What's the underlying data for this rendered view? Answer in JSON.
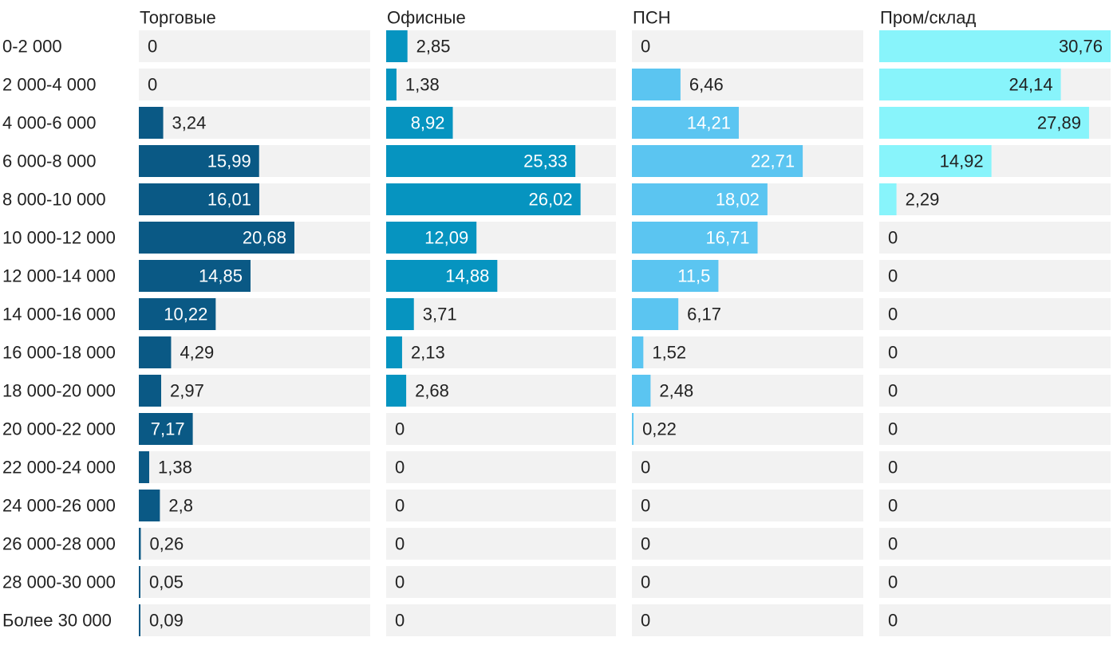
{
  "chart_data": {
    "type": "bar",
    "orientation": "horizontal",
    "layout": "small-multiples",
    "title": "",
    "categories": [
      "0-2 000",
      "2 000-4 000",
      "4 000-6 000",
      "6 000-8 000",
      "8 000-10 000",
      "10 000-12 000",
      "12 000-14 000",
      "14 000-16 000",
      "16 000-18 000",
      "18 000-20 000",
      "20 000-22 000",
      "22 000-24 000",
      "24 000-26 000",
      "26 000-28 000",
      "28 000-30 000",
      "Более 30 000"
    ],
    "series": [
      {
        "name": "Торговые",
        "color": "#0a5985",
        "values": [
          0,
          0,
          3.24,
          15.99,
          16.01,
          20.68,
          14.85,
          10.22,
          4.29,
          2.97,
          7.17,
          1.38,
          2.8,
          0.26,
          0.05,
          0.09
        ],
        "labels": [
          "0",
          "0",
          "3,24",
          "15,99",
          "16,01",
          "20,68",
          "14,85",
          "10,22",
          "4,29",
          "2,97",
          "7,17",
          "1,38",
          "2,8",
          "0,26",
          "0,05",
          "0,09"
        ]
      },
      {
        "name": "Офисные",
        "color": "#0694c0",
        "values": [
          2.85,
          1.38,
          8.92,
          25.33,
          26.02,
          12.09,
          14.88,
          3.71,
          2.13,
          2.68,
          0,
          0,
          0,
          0,
          0,
          0
        ],
        "labels": [
          "2,85",
          "1,38",
          "8,92",
          "25,33",
          "26,02",
          "12,09",
          "14,88",
          "3,71",
          "2,13",
          "2,68",
          "0",
          "0",
          "0",
          "0",
          "0",
          "0"
        ]
      },
      {
        "name": "ПСН",
        "color": "#5bc5f1",
        "values": [
          0,
          6.46,
          14.21,
          22.71,
          18.02,
          16.71,
          11.5,
          6.17,
          1.52,
          2.48,
          0.22,
          0,
          0,
          0,
          0,
          0
        ],
        "labels": [
          "0",
          "6,46",
          "14,21",
          "22,71",
          "18,02",
          "16,71",
          "11,5",
          "6,17",
          "1,52",
          "2,48",
          "0,22",
          "0",
          "0",
          "0",
          "0",
          "0"
        ]
      },
      {
        "name": "Пром/склад",
        "color": "#88f4fb",
        "values": [
          30.76,
          24.14,
          27.89,
          14.92,
          2.29,
          0,
          0,
          0,
          0,
          0,
          0,
          0,
          0,
          0,
          0,
          0
        ],
        "labels": [
          "30,76",
          "24,14",
          "27,89",
          "14,92",
          "2,29",
          "0",
          "0",
          "0",
          "0",
          "0",
          "0",
          "0",
          "0",
          "0",
          "0",
          "0"
        ]
      }
    ],
    "track_color": "#f2f2f2",
    "grid": false,
    "legend": "none"
  }
}
